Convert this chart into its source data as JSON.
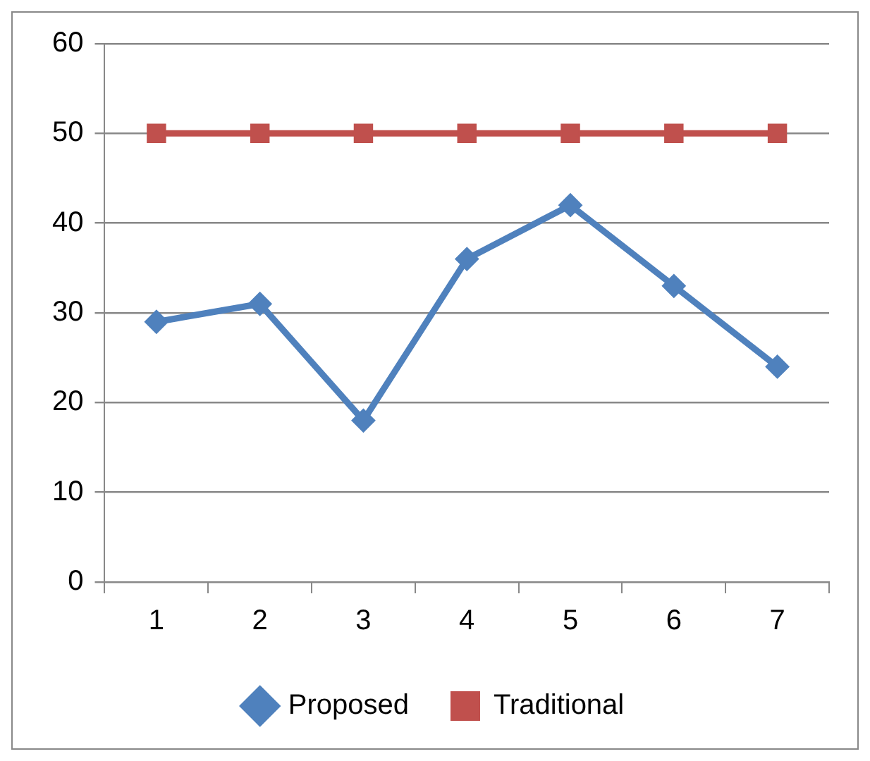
{
  "chart_data": {
    "type": "line",
    "categories": [
      "1",
      "2",
      "3",
      "4",
      "5",
      "6",
      "7"
    ],
    "series": [
      {
        "name": "Proposed",
        "color": "#4f81bd",
        "marker": "diamond",
        "values": [
          29,
          31,
          18,
          36,
          42,
          33,
          24
        ]
      },
      {
        "name": "Traditional",
        "color": "#c0504d",
        "marker": "square",
        "values": [
          50,
          50,
          50,
          50,
          50,
          50,
          50
        ]
      }
    ],
    "ylim": [
      0,
      60
    ],
    "yticks": [
      0,
      10,
      20,
      30,
      40,
      50,
      60
    ],
    "grid": "y",
    "legend": "bottom"
  }
}
